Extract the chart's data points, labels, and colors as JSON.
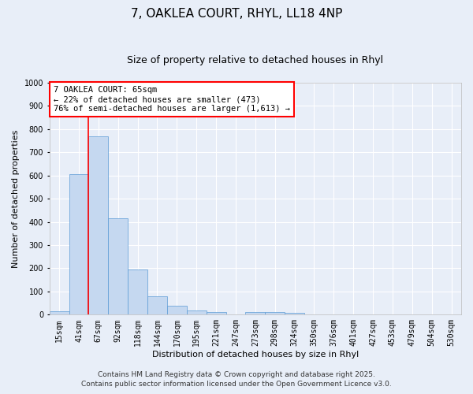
{
  "title": "7, OAKLEA COURT, RHYL, LL18 4NP",
  "subtitle": "Size of property relative to detached houses in Rhyl",
  "xlabel": "Distribution of detached houses by size in Rhyl",
  "ylabel": "Number of detached properties",
  "bar_color": "#c5d8f0",
  "bar_edge_color": "#5b9bd5",
  "background_color": "#e8eef8",
  "grid_color": "#ffffff",
  "categories": [
    "15sqm",
    "41sqm",
    "67sqm",
    "92sqm",
    "118sqm",
    "144sqm",
    "170sqm",
    "195sqm",
    "221sqm",
    "247sqm",
    "273sqm",
    "298sqm",
    "324sqm",
    "350sqm",
    "376sqm",
    "401sqm",
    "427sqm",
    "453sqm",
    "479sqm",
    "504sqm",
    "530sqm"
  ],
  "values": [
    15,
    605,
    770,
    415,
    195,
    80,
    38,
    18,
    10,
    0,
    12,
    10,
    8,
    0,
    0,
    0,
    0,
    0,
    0,
    0,
    0
  ],
  "ylim": [
    0,
    1000
  ],
  "yticks": [
    0,
    100,
    200,
    300,
    400,
    500,
    600,
    700,
    800,
    900,
    1000
  ],
  "red_line_x": 1.5,
  "annotation_text": "7 OAKLEA COURT: 65sqm\n← 22% of detached houses are smaller (473)\n76% of semi-detached houses are larger (1,613) →",
  "footer_line1": "Contains HM Land Registry data © Crown copyright and database right 2025.",
  "footer_line2": "Contains public sector information licensed under the Open Government Licence v3.0.",
  "title_fontsize": 11,
  "subtitle_fontsize": 9,
  "annot_fontsize": 7.5,
  "tick_fontsize": 7,
  "ylabel_fontsize": 8,
  "xlabel_fontsize": 8,
  "footer_fontsize": 6.5
}
